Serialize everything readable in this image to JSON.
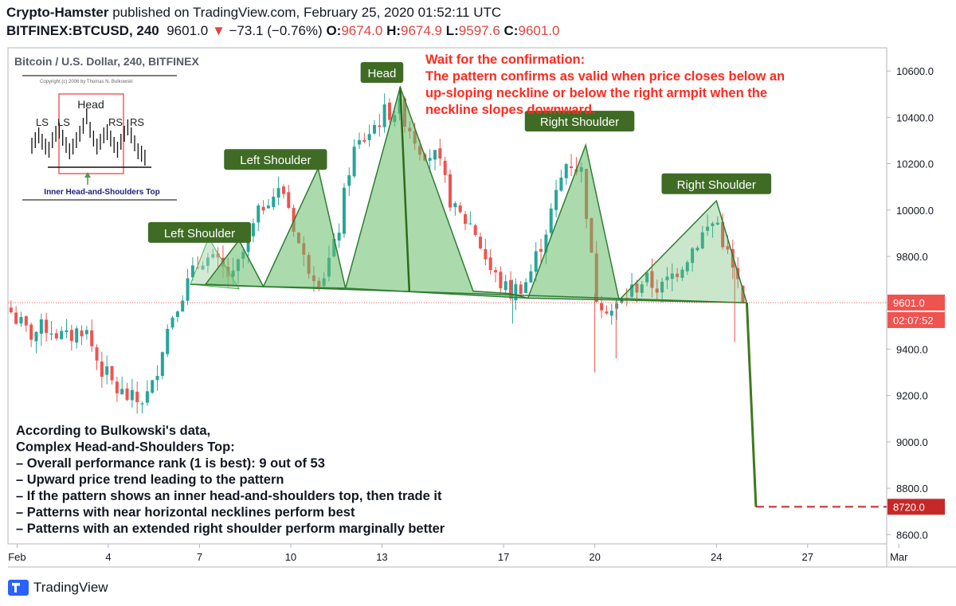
{
  "header": {
    "author": "Crypto-Hamster",
    "published_text": "published on TradingView.com, February 25, 2020 01:52:11 UTC",
    "symbol": "BITFINEX:BTCUSD, 240",
    "last": "9601.0",
    "change_arrow": "▼",
    "change": "−73.1 (−0.76%)",
    "o_label": "O:",
    "o": "9674.0",
    "h_label": "H:",
    "h": "9674.9",
    "l_label": "L:",
    "l": "9597.6",
    "c_label": "C:",
    "c": "9601.0"
  },
  "footer": {
    "brand": "TradingView"
  },
  "chart_data": {
    "type": "candlestick",
    "title": "Bitcoin / U.S. Dollar, 240, BITFINEX",
    "ylim": [
      8560,
      10700
    ],
    "xlim": [
      0.7,
      29.6
    ],
    "y_ticks": [
      "10600.0",
      "10400.0",
      "10200.0",
      "10000.0",
      "9800.0",
      "9600.0",
      "9400.0",
      "9200.0",
      "9000.0",
      "8800.0",
      "8600.0"
    ],
    "x_ticks": [
      {
        "label": "Feb",
        "day": 1
      },
      {
        "label": "4",
        "day": 4
      },
      {
        "label": "7",
        "day": 7
      },
      {
        "label": "10",
        "day": 10
      },
      {
        "label": "13",
        "day": 13
      },
      {
        "label": "17",
        "day": 17
      },
      {
        "label": "20",
        "day": 20
      },
      {
        "label": "24",
        "day": 24
      },
      {
        "label": "27",
        "day": 27
      },
      {
        "label": "Mar",
        "day": 30
      }
    ],
    "current_price_label": "9601.0",
    "countdown_label": "02:07:52",
    "target_price_label": "8720.0",
    "colors": {
      "up": "#26a69a",
      "down": "#ef5350",
      "pattern_fill": "#66bb6a",
      "label_bg": "#3f6b25",
      "target": "#c62828",
      "projection": "#3d7a1e"
    },
    "path_points": [
      [
        0.8,
        9560
      ],
      [
        1.4,
        9460
      ],
      [
        2.0,
        9500
      ],
      [
        2.6,
        9440
      ],
      [
        3.2,
        9500
      ],
      [
        3.7,
        9330
      ],
      [
        4.3,
        9220
      ],
      [
        4.9,
        9170
      ],
      [
        5.4,
        9210
      ],
      [
        5.8,
        9430
      ],
      [
        6.2,
        9590
      ],
      [
        6.6,
        9680
      ],
      [
        7.1,
        9800
      ],
      [
        7.6,
        9760
      ],
      [
        8.1,
        9700
      ],
      [
        8.6,
        9870
      ],
      [
        9.2,
        10060
      ],
      [
        9.8,
        10080
      ],
      [
        10.4,
        9790
      ],
      [
        11.0,
        9700
      ],
      [
        11.5,
        9860
      ],
      [
        12.0,
        10240
      ],
      [
        12.6,
        10340
      ],
      [
        13.1,
        10420
      ],
      [
        13.6,
        10440
      ],
      [
        14.2,
        10280
      ],
      [
        14.8,
        10220
      ],
      [
        15.4,
        9990
      ],
      [
        16.0,
        9930
      ],
      [
        16.6,
        9730
      ],
      [
        17.2,
        9640
      ],
      [
        17.8,
        9700
      ],
      [
        18.4,
        9920
      ],
      [
        19.1,
        10220
      ],
      [
        19.6,
        10160
      ],
      [
        20.0,
        9640
      ],
      [
        20.6,
        9560
      ],
      [
        21.1,
        9640
      ],
      [
        21.6,
        9700
      ],
      [
        22.2,
        9660
      ],
      [
        22.8,
        9760
      ],
      [
        23.5,
        9890
      ],
      [
        24.0,
        9960
      ],
      [
        24.5,
        9750
      ],
      [
        24.95,
        9601
      ]
    ],
    "pattern_triangles": [
      [
        [
          7.2,
          9680
        ],
        [
          8.2,
          9880
        ],
        [
          9.0,
          9672
        ]
      ],
      [
        [
          8.8,
          9660
        ],
        [
          10.9,
          10180
        ],
        [
          11.2,
          9664
        ]
      ],
      [
        [
          11.3,
          9660
        ],
        [
          12.8,
          10230
        ],
        [
          14.3,
          9640
        ]
      ],
      [
        [
          13.8,
          9645
        ],
        [
          17.8,
          9620
        ]
      ],
      [
        [
          17.8,
          9620
        ],
        [
          19.7,
          10280
        ],
        [
          20.7,
          9615
        ]
      ],
      [
        [
          21.5,
          9610
        ],
        [
          24.0,
          10040
        ],
        [
          24.2,
          9600
        ]
      ]
    ],
    "shape_polygons": [
      [
        [
          7.2,
          9680
        ],
        [
          8.3,
          9870
        ],
        [
          9.1,
          9670
        ]
      ],
      [
        [
          9.1,
          9670
        ],
        [
          10.9,
          10180
        ],
        [
          11.8,
          9663
        ]
      ],
      [
        [
          11.8,
          9663
        ],
        [
          13.6,
          10530
        ],
        [
          16.0,
          9650
        ],
        [
          17.2,
          9640
        ],
        [
          17.8,
          9620
        ]
      ],
      [
        [
          17.8,
          9620
        ],
        [
          19.7,
          10280
        ],
        [
          20.8,
          9612
        ]
      ],
      [
        [
          20.8,
          9612
        ],
        [
          24.0,
          10040
        ],
        [
          25.0,
          9600
        ]
      ]
    ],
    "shape_polygon_light": [
      [
        [
          6.7,
          9680
        ],
        [
          7.3,
          9880
        ],
        [
          8.3,
          9660
        ]
      ]
    ],
    "neckline": [
      [
        6.7,
        9680
      ],
      [
        25.0,
        9600
      ]
    ],
    "head_vertical": [
      [
        13.6,
        10530
      ],
      [
        13.9,
        9650
      ]
    ],
    "projection": [
      [
        25.0,
        9600
      ],
      [
        25.3,
        8720
      ]
    ],
    "target_line": [
      [
        25.3,
        8720
      ],
      [
        29.6,
        8720
      ]
    ],
    "annotations": [
      {
        "text": "Left Shoulder",
        "day": 7.0,
        "price": 9900
      },
      {
        "text": "Left Shoulder",
        "day": 9.5,
        "price": 10215
      },
      {
        "text": "Head",
        "day": 13.0,
        "price": 10590
      },
      {
        "text": "Right Shoulder",
        "day": 19.5,
        "price": 10380
      },
      {
        "text": "Right Shoulder",
        "day": 24.0,
        "price": 10110
      }
    ],
    "note_red": [
      "Wait for the confirmation:",
      "The pattern confirms as valid when price closes below an",
      "up-sloping neckline or below the right armpit when the",
      "neckline slopes downward."
    ],
    "note_black": [
      "According to Bulkowski's data,",
      "Complex Head-and-Shoulders Top:",
      "– Overall performance rank (1 is best): 9 out of 53",
      "– Upward price trend leading to the pattern",
      "– If the pattern shows an inner head-and-shoulders top, then trade it",
      "– Patterns with near horizontal necklines perform best",
      "– Patterns with an extended right shoulder perform marginally better"
    ],
    "inset": {
      "copyright": "Copyright (c) 2006 by Thomas N. Bulkowski",
      "head_label": "Head",
      "labels": [
        "LS",
        "LS",
        "RS",
        "RS"
      ],
      "caption": "Inner Head-and-Shoulders Top"
    }
  }
}
